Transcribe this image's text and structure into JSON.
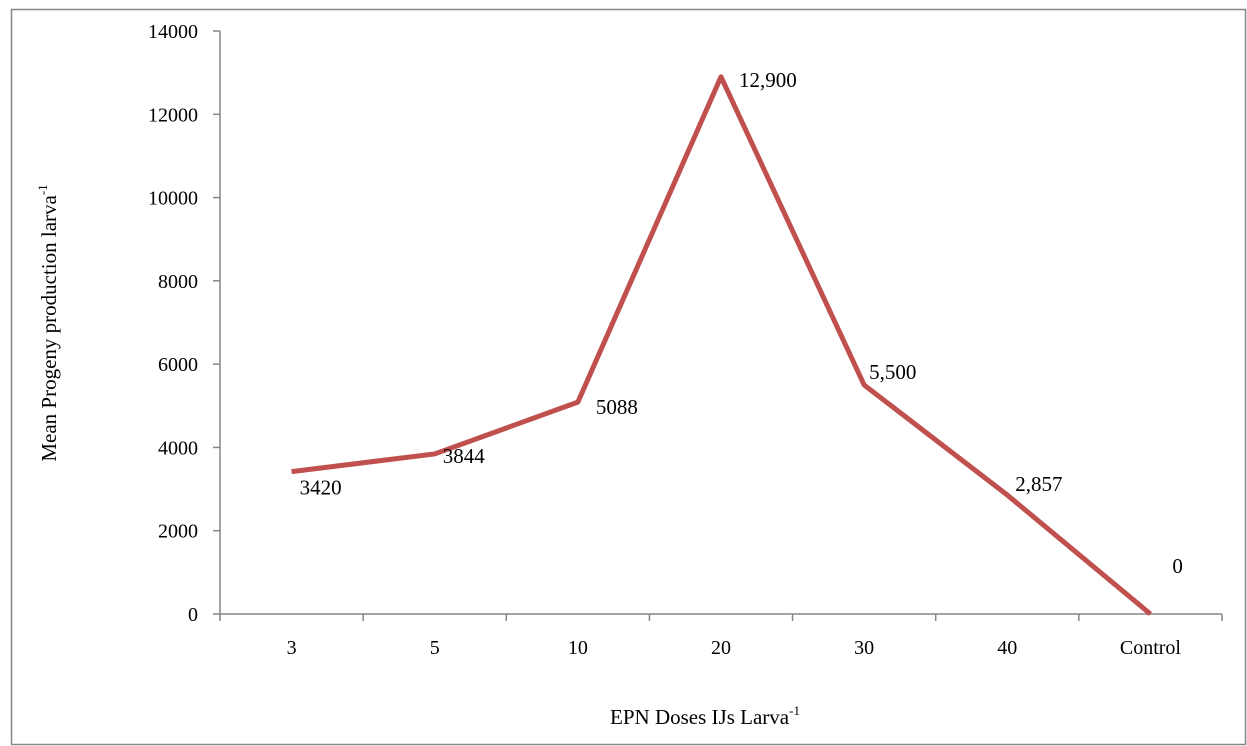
{
  "chart_data": {
    "type": "line",
    "categories": [
      "3",
      "5",
      "10",
      "20",
      "30",
      "40",
      "Control"
    ],
    "series": [
      {
        "values": [
          3420,
          3844,
          5088,
          12900,
          5500,
          2857,
          0
        ],
        "data_labels": [
          "3420",
          "3844",
          "5088",
          "12,900",
          "5,500",
          "2,857",
          "0"
        ],
        "color": "#c0504d"
      }
    ],
    "title": "",
    "xlabel": {
      "text": "EPN Doses IJs Larva",
      "sup": "-1"
    },
    "ylabel": {
      "text": "Mean Progeny production larva",
      "sup": "-1"
    },
    "ylim": [
      0,
      14000
    ],
    "yticks": [
      0,
      2000,
      4000,
      6000,
      8000,
      10000,
      12000,
      14000
    ],
    "grid": false,
    "legend": "none"
  },
  "colors": {
    "line": "#c0504d",
    "axis": "#868686",
    "border": "#868686"
  }
}
